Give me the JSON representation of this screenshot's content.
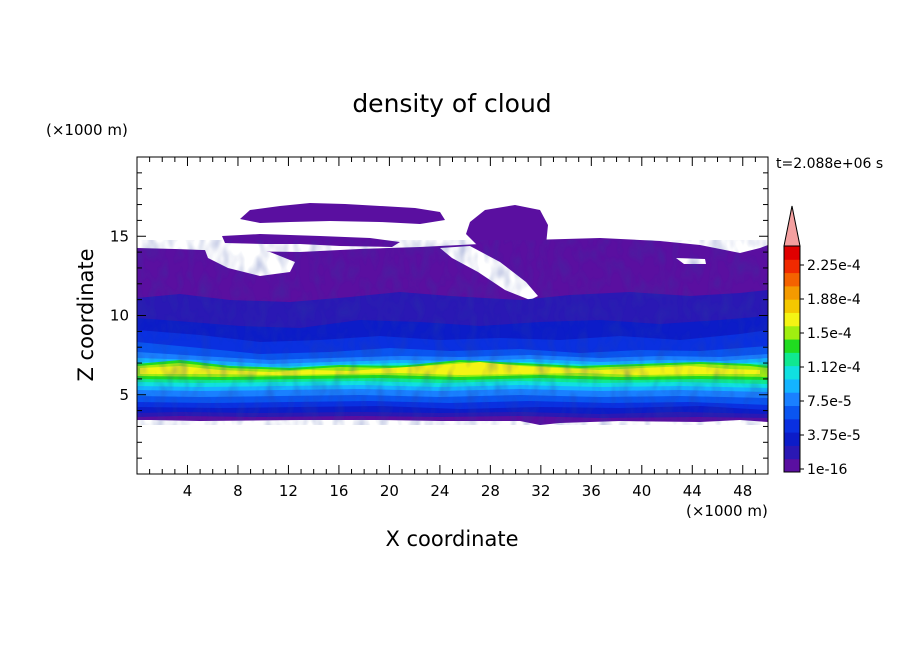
{
  "chart_data": {
    "type": "heatmap",
    "title": "density of cloud",
    "xlabel": "X coordinate",
    "ylabel": "Z coordinate",
    "x_unit": "(×1000 m)",
    "y_unit": "(×1000 m)",
    "time_label": "t=2.088e+06 s",
    "xlim": [
      0,
      50
    ],
    "ylim": [
      0,
      20
    ],
    "x_ticks": [
      "4",
      "8",
      "12",
      "16",
      "20",
      "24",
      "28",
      "32",
      "36",
      "40",
      "44",
      "48"
    ],
    "y_ticks": [
      "5",
      "10",
      "15"
    ],
    "colorbar": {
      "levels_shown": [
        "2.25e-4",
        "1.88e-4",
        "1.5e-4",
        "1.12e-4",
        "7.5e-5",
        "3.75e-5",
        "1e-16"
      ],
      "colors_bottom_to_top": [
        "#5a0fa0",
        "#2a18b4",
        "#0c1cc8",
        "#0a30e0",
        "#0a55f0",
        "#1a80ff",
        "#14b4ff",
        "#10e0e0",
        "#10e890",
        "#20dc20",
        "#a0ee10",
        "#f4f414",
        "#f4c800",
        "#f49a00",
        "#f46200",
        "#f02a00",
        "#e00000"
      ],
      "extend_color": "#f4a0a0"
    },
    "approx_structure": {
      "cloud_base_km": 3.3,
      "dense_layer_km": [
        5.0,
        7.5
      ],
      "dense_layer_peak": 0.00017,
      "cloud_top_km": 14.0,
      "upper_patches_top_km": 17.0
    }
  }
}
